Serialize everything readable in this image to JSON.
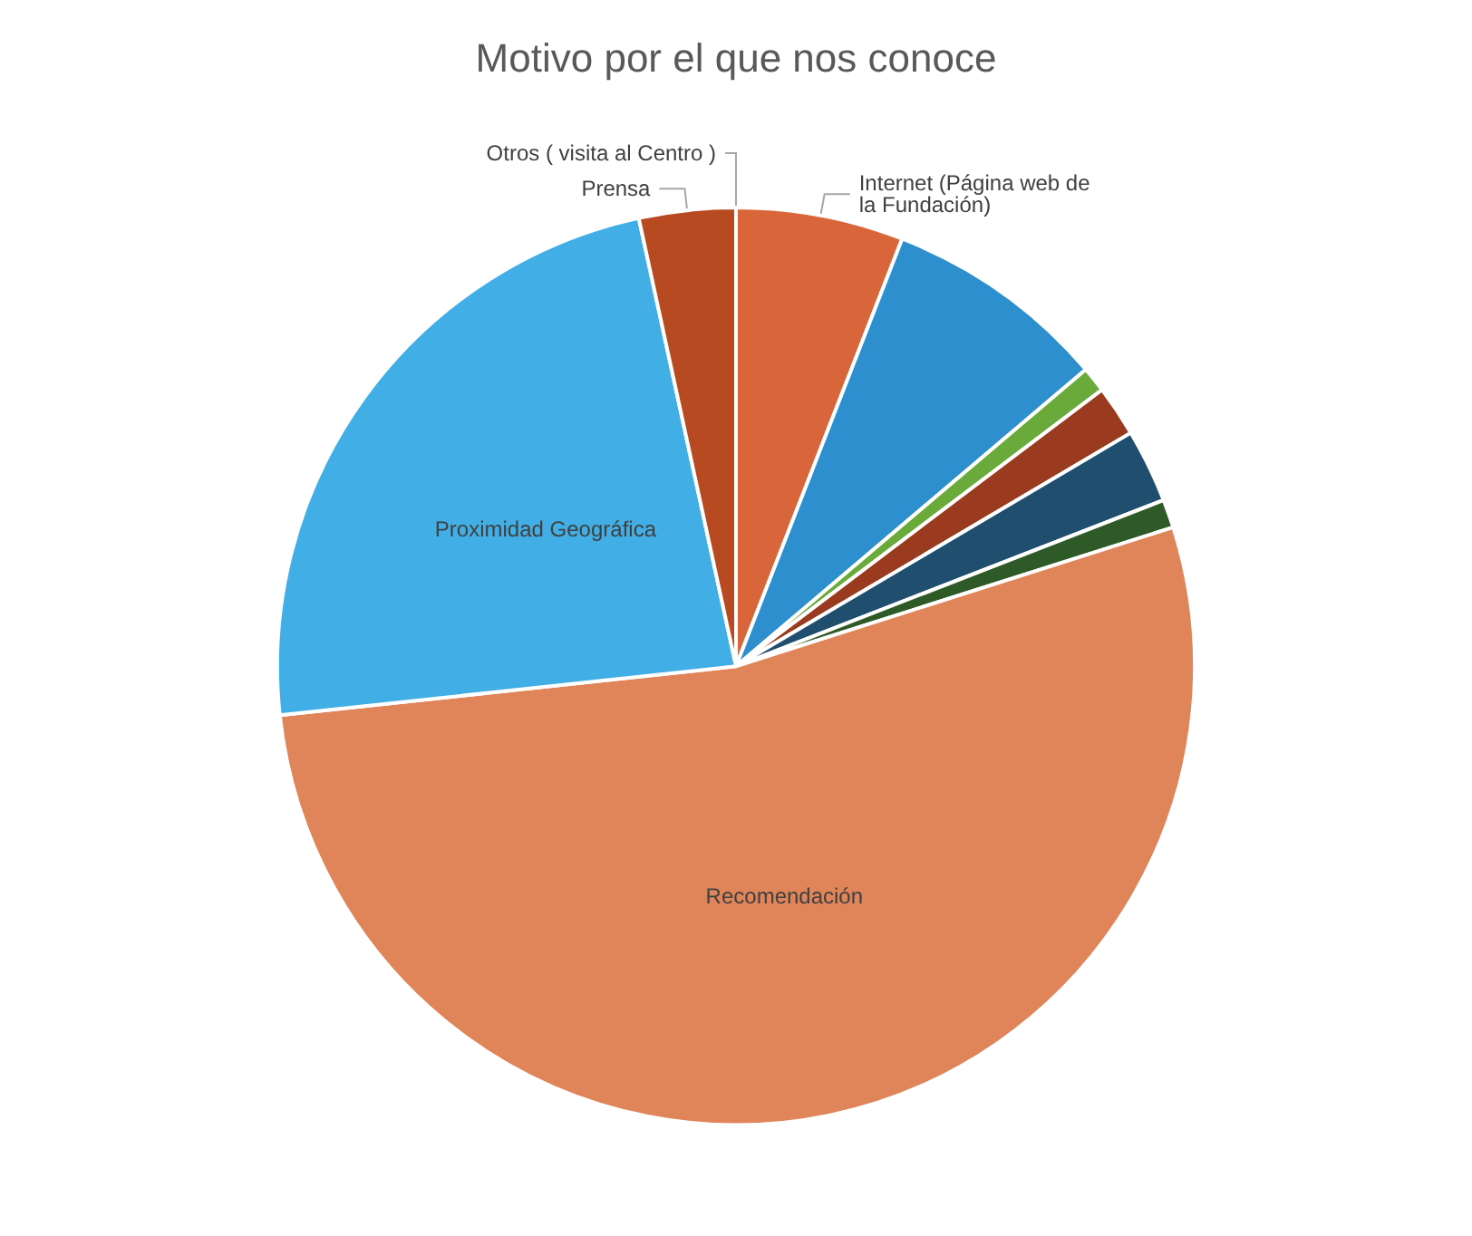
{
  "chart_data": {
    "type": "pie",
    "title": "Motivo por el que nos conoce",
    "categories": [
      "Otros ( visita al Centro )",
      "Internet (Página web de la Fundación)",
      null,
      null,
      null,
      null,
      null,
      "Recomendación",
      "Proximidad Geográfica",
      "Prensa"
    ],
    "values": [
      0,
      5.9,
      7.9,
      0.9,
      1.8,
      2.6,
      1.0,
      53.2,
      23.3,
      3.4
    ],
    "colors": [
      "#c55a28",
      "#d9663a",
      "#2e8fcf",
      "#6aaa3a",
      "#9a3a1e",
      "#1f4e6e",
      "#2d5a27",
      "#e0845a",
      "#42aee6",
      "#b84a22"
    ]
  }
}
